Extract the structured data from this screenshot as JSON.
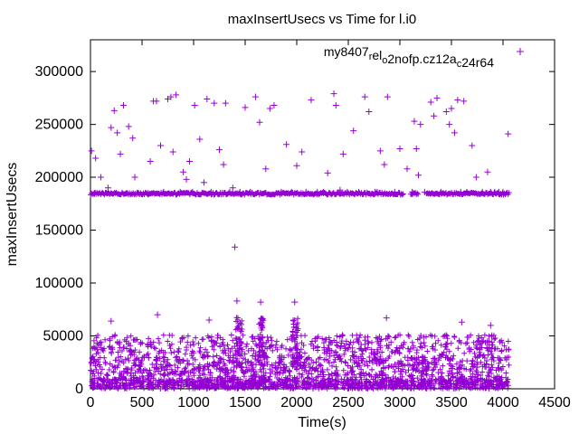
{
  "chart_data": {
    "type": "scatter",
    "title": "maxInsertUsecs vs Time for l.i0",
    "xlabel": "Time(s)",
    "ylabel": "maxInsertUsecs",
    "xlim": [
      0,
      4500
    ],
    "ylim": [
      0,
      330000
    ],
    "xticks": [
      0,
      500,
      1000,
      1500,
      2000,
      2500,
      3000,
      3500,
      4000,
      4500
    ],
    "yticks": [
      0,
      50000,
      100000,
      150000,
      200000,
      250000,
      300000
    ],
    "grid": false,
    "legend": {
      "placement": "top-right",
      "label_parts": [
        {
          "text": "my8407",
          "sub": false
        },
        {
          "text": "r",
          "sub": true
        },
        {
          "text": "el",
          "sub": false
        },
        {
          "text": "o",
          "sub": true
        },
        {
          "text": "2nofp.cz12a",
          "sub": false
        },
        {
          "text": "c",
          "sub": true
        },
        {
          "text": "24r64",
          "sub": false
        }
      ]
    },
    "series": [
      {
        "marker": "plus",
        "color": "#9400d3",
        "points": [
          [
            10,
            225000
          ],
          [
            40,
            185000
          ],
          [
            50,
            218000
          ],
          [
            100,
            200000
          ],
          [
            150,
            185000
          ],
          [
            170,
            190000
          ],
          [
            200,
            247000
          ],
          [
            230,
            263000
          ],
          [
            260,
            242000
          ],
          [
            290,
            222000
          ],
          [
            320,
            268000
          ],
          [
            350,
            185000
          ],
          [
            370,
            248000
          ],
          [
            410,
            237000
          ],
          [
            430,
            200000
          ],
          [
            460,
            185000
          ],
          [
            560,
            185000
          ],
          [
            580,
            215000
          ],
          [
            610,
            272000
          ],
          [
            640,
            272000
          ],
          [
            680,
            230000
          ],
          [
            710,
            186000
          ],
          [
            750,
            274000
          ],
          [
            780,
            276000
          ],
          [
            800,
            224000
          ],
          [
            830,
            278000
          ],
          [
            870,
            186000
          ],
          [
            900,
            205000
          ],
          [
            930,
            198000
          ],
          [
            960,
            215000
          ],
          [
            990,
            186000
          ],
          [
            1010,
            268000
          ],
          [
            1060,
            236000
          ],
          [
            1100,
            195000
          ],
          [
            1130,
            274000
          ],
          [
            1170,
            186000
          ],
          [
            1200,
            270000
          ],
          [
            1250,
            226000
          ],
          [
            1290,
            212000
          ],
          [
            1310,
            270000
          ],
          [
            1350,
            186000
          ],
          [
            1380,
            190000
          ],
          [
            1400,
            134000
          ],
          [
            1450,
            186000
          ],
          [
            1500,
            266000
          ],
          [
            1550,
            186000
          ],
          [
            1600,
            276000
          ],
          [
            1640,
            252000
          ],
          [
            1700,
            208000
          ],
          [
            1740,
            265000
          ],
          [
            1780,
            268000
          ],
          [
            1850,
            186000
          ],
          [
            1900,
            231000
          ],
          [
            1950,
            186000
          ],
          [
            2000,
            211000
          ],
          [
            2050,
            224000
          ],
          [
            2090,
            186000
          ],
          [
            2140,
            273000
          ],
          [
            2200,
            186000
          ],
          [
            2260,
            186000
          ],
          [
            2300,
            204000
          ],
          [
            2360,
            279000
          ],
          [
            2380,
            268000
          ],
          [
            2420,
            188000
          ],
          [
            2450,
            222000
          ],
          [
            2490,
            186000
          ],
          [
            2550,
            244000
          ],
          [
            2600,
            186000
          ],
          [
            2660,
            276000
          ],
          [
            2700,
            262000
          ],
          [
            2760,
            186000
          ],
          [
            2780,
            186000
          ],
          [
            2810,
            225000
          ],
          [
            2850,
            212000
          ],
          [
            2880,
            276000
          ],
          [
            2950,
            186000
          ],
          [
            3000,
            227000
          ],
          [
            3070,
            208000
          ],
          [
            3120,
            186000
          ],
          [
            3140,
            253000
          ],
          [
            3160,
            227000
          ],
          [
            3180,
            202000
          ],
          [
            3200,
            250000
          ],
          [
            3240,
            186000
          ],
          [
            3300,
            271000
          ],
          [
            3330,
            258000
          ],
          [
            3360,
            275000
          ],
          [
            3400,
            186000
          ],
          [
            3450,
            262000
          ],
          [
            3480,
            250000
          ],
          [
            3500,
            265000
          ],
          [
            3530,
            242000
          ],
          [
            3560,
            273000
          ],
          [
            3590,
            186000
          ],
          [
            3620,
            272000
          ],
          [
            3650,
            186000
          ],
          [
            3700,
            230000
          ],
          [
            3740,
            200000
          ],
          [
            3800,
            186000
          ],
          [
            3850,
            205000
          ],
          [
            3880,
            186000
          ],
          [
            3920,
            186000
          ],
          [
            3960,
            186000
          ],
          [
            4000,
            186000
          ],
          [
            4050,
            241000
          ],
          [
            1420,
            83000
          ],
          [
            1650,
            82000
          ],
          [
            1980,
            82000
          ],
          [
            2870,
            67000
          ],
          [
            200,
            64000
          ],
          [
            650,
            70000
          ],
          [
            1150,
            65000
          ],
          [
            3600,
            63000
          ],
          [
            3880,
            60000
          ]
        ]
      }
    ]
  }
}
